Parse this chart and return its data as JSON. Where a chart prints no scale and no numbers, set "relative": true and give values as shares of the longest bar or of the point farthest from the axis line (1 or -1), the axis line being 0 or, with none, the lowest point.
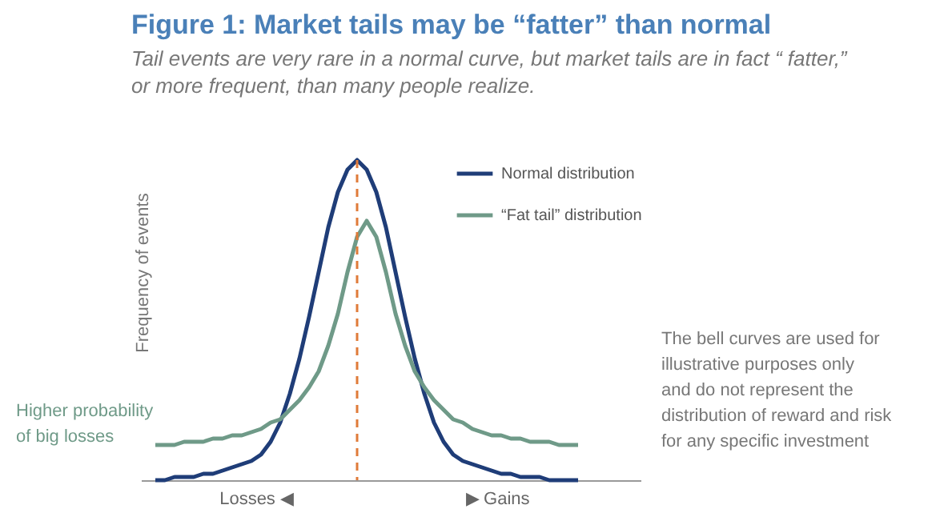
{
  "chart_data": {
    "type": "line",
    "title": "Figure 1: Market tails may be “fatter” than normal",
    "subtitle": "Tail events are very rare in a normal curve, but market tails are in fact “ fatter,”\nor more frequent, than many people realize.",
    "ylabel": "Frequency of events",
    "relative": true,
    "legend": "top right",
    "marker": "none",
    "line_style": "solid",
    "categories": [
      null,
      null,
      null,
      null,
      null,
      null,
      null,
      null,
      null,
      null,
      null,
      null,
      null,
      null,
      null,
      null,
      null,
      null,
      null,
      null,
      null,
      null,
      null,
      null,
      null,
      null,
      null,
      null,
      null,
      null,
      null,
      null,
      null,
      null,
      null,
      null,
      null,
      null,
      null,
      null,
      null,
      null,
      null,
      null,
      null
    ],
    "series": [
      {
        "name": "Normal distribution",
        "color": "#1f3d78",
        "values": [
          0,
          0,
          0.01,
          0.01,
          0.01,
          0.02,
          0.02,
          0.03,
          0.04,
          0.05,
          0.06,
          0.08,
          0.12,
          0.18,
          0.27,
          0.38,
          0.51,
          0.65,
          0.79,
          0.9,
          0.97,
          1,
          0.97,
          0.9,
          0.79,
          0.65,
          0.51,
          0.38,
          0.27,
          0.18,
          0.12,
          0.08,
          0.06,
          0.05,
          0.04,
          0.03,
          0.02,
          0.02,
          0.01,
          0.01,
          0.01,
          0,
          0,
          0,
          0
        ]
      },
      {
        "name": "“Fat tail” distribution",
        "color": "#6f9a88",
        "values": [
          0.11,
          0.11,
          0.11,
          0.12,
          0.12,
          0.12,
          0.13,
          0.13,
          0.14,
          0.14,
          0.15,
          0.16,
          0.18,
          0.19,
          0.22,
          0.25,
          0.29,
          0.34,
          0.42,
          0.52,
          0.65,
          0.76,
          0.81,
          0.76,
          0.65,
          0.52,
          0.42,
          0.34,
          0.29,
          0.25,
          0.22,
          0.19,
          0.18,
          0.16,
          0.15,
          0.14,
          0.14,
          0.13,
          0.13,
          0.12,
          0.12,
          0.12,
          0.11,
          0.11,
          0.11
        ]
      }
    ],
    "ref_lines": [
      {
        "axis": "x",
        "color": "#e07b39",
        "line_style": "dashed"
      }
    ],
    "annotations": [
      "Losses ◀",
      "▶ Gains",
      "Higher probability\nof big losses",
      "The bell curves are used for\nillustrative purposes only\nand do not represent the\ndistribution of reward and risk\nfor any specific investment"
    ]
  }
}
